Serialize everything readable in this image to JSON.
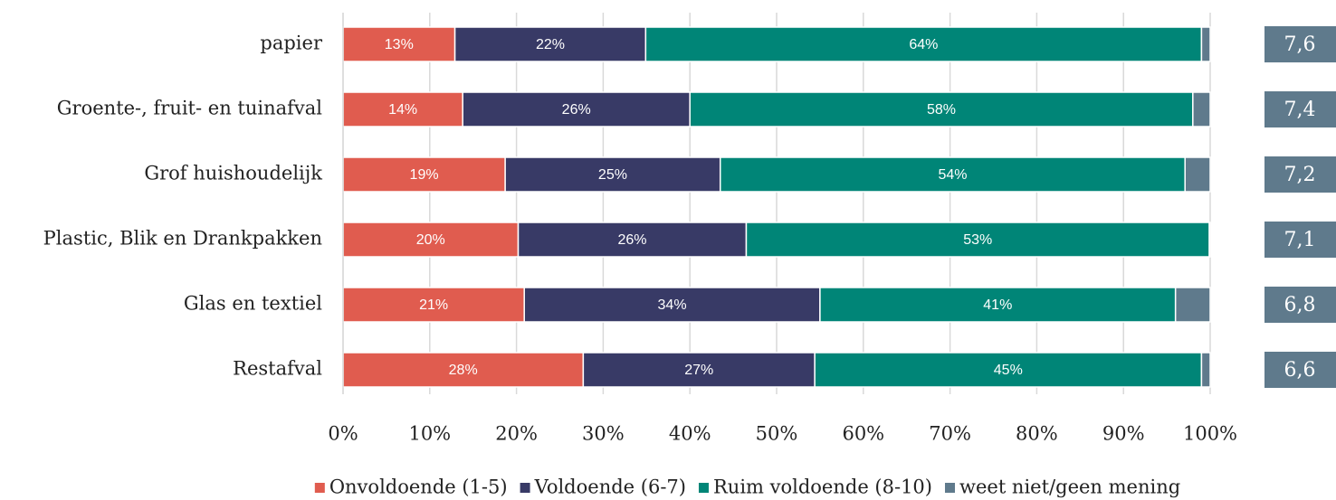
{
  "chart_data": {
    "type": "stacked-bar",
    "categories": [
      "papier",
      "Groente-, fruit- en tuinafval",
      "Grof huishoudelijk ",
      "Plastic, Blik en Drankpakken",
      "Glas en textiel",
      "Restafval"
    ],
    "series": [
      {
        "name": "Onvoldoende (1-5)",
        "color": "#e05c4f",
        "values": [
          12.9,
          13.8,
          18.7,
          20.2,
          20.9,
          27.7
        ],
        "value_labels": [
          "13%",
          "14%",
          "19%",
          "20%",
          "21%",
          "28%"
        ]
      },
      {
        "name": "Voldoende (6-7)",
        "color": "#383a66",
        "values": [
          22.0,
          26.2,
          24.8,
          26.3,
          34.1,
          26.7
        ],
        "value_labels": [
          "22%",
          "26%",
          "25%",
          "26%",
          "34%",
          "27%"
        ]
      },
      {
        "name": "Ruim voldoende (8-10)",
        "color": "#008577",
        "values": [
          64.1,
          58.0,
          53.6,
          53.4,
          41.0,
          44.6
        ],
        "value_labels": [
          "64%",
          "58%",
          "54%",
          "53%",
          "41%",
          "45%"
        ]
      },
      {
        "name": "weet niet/geen mening",
        "color": "#5f7a8c",
        "values": [
          1.0,
          2.0,
          2.9,
          0.1,
          4.0,
          1.0
        ]
      }
    ],
    "scores": [
      "7,6",
      "7,4",
      "7,2",
      "7,1",
      "6,8",
      "6,6"
    ],
    "score_color": "#5f7a8c",
    "xlim": [
      0,
      100
    ],
    "xticks": [
      {
        "value": 0,
        "label": "0%"
      },
      {
        "value": 10,
        "label": "10%"
      },
      {
        "value": 20,
        "label": "20%"
      },
      {
        "value": 30,
        "label": "30%"
      },
      {
        "value": 40,
        "label": "40%"
      },
      {
        "value": 50,
        "label": "50%"
      },
      {
        "value": 60,
        "label": "60%"
      },
      {
        "value": 70,
        "label": "70%"
      },
      {
        "value": 80,
        "label": "80%"
      },
      {
        "value": 90,
        "label": "90%"
      },
      {
        "value": 100,
        "label": "100%"
      }
    ],
    "grid": true,
    "legend": "bottom"
  }
}
